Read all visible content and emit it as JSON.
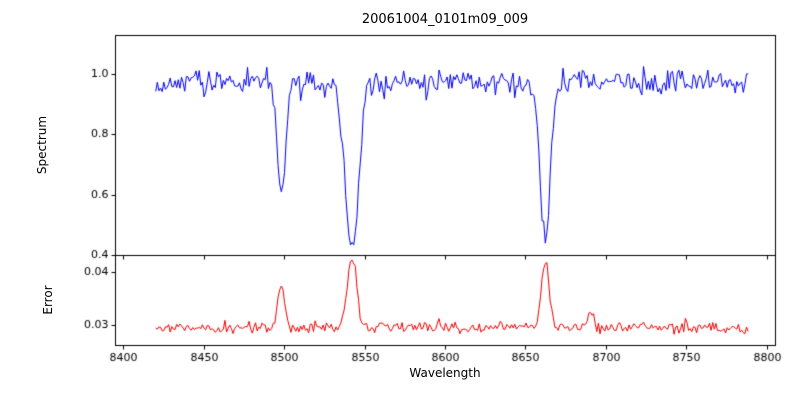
{
  "figure": {
    "background": "#ffffff",
    "title": "20061004_0101m09_009"
  },
  "chart_data": [
    {
      "type": "line",
      "panel": "spectrum",
      "title": "20061004_0101m09_009",
      "ylabel": "Spectrum",
      "color": "#0000ee",
      "line_width": 1,
      "xlim": [
        8395,
        8805
      ],
      "ylim": [
        0.4,
        1.13
      ],
      "xticks": [
        8400,
        8450,
        8500,
        8550,
        8600,
        8650,
        8700,
        8750,
        8800
      ],
      "yticks": [
        {
          "value": 0.4,
          "label": "0.4"
        },
        {
          "value": 0.6,
          "label": "0.6"
        },
        {
          "value": 0.8,
          "label": "0.8"
        },
        {
          "value": 1.0,
          "label": "1.0"
        }
      ],
      "show_x_tick_labels": false,
      "x_start": 8420,
      "x_end": 8788,
      "x_step": 1,
      "continuum": 0.972,
      "noise_sigma": 0.02,
      "absorption_lines": [
        {
          "center": 8498,
          "depth": 0.39,
          "sigma": 2.6
        },
        {
          "center": 8542,
          "depth": 0.545,
          "sigma": 4.2
        },
        {
          "center": 8662,
          "depth": 0.52,
          "sigma": 3.2
        }
      ]
    },
    {
      "type": "line",
      "panel": "error",
      "xlabel": "Wavelength",
      "ylabel": "Error",
      "color": "#ee0000",
      "line_width": 1,
      "xlim": [
        8395,
        8805
      ],
      "ylim": [
        0.0262,
        0.0432
      ],
      "xticks": [
        8400,
        8450,
        8500,
        8550,
        8600,
        8650,
        8700,
        8750,
        8800
      ],
      "yticks": [
        {
          "value": 0.03,
          "label": "0.03"
        },
        {
          "value": 0.04,
          "label": "0.04"
        }
      ],
      "show_x_tick_labels": true,
      "x_start": 8420,
      "x_end": 8788,
      "x_step": 1,
      "baseline": 0.0296,
      "noise_sigma": 0.00055,
      "emission_peaks": [
        {
          "center": 8498,
          "height": 0.0078,
          "sigma": 2.2
        },
        {
          "center": 8542,
          "height": 0.0133,
          "sigma": 2.8
        },
        {
          "center": 8662,
          "height": 0.0125,
          "sigma": 2.4
        },
        {
          "center": 8690,
          "height": 0.0028,
          "sigma": 1.8
        }
      ]
    }
  ]
}
